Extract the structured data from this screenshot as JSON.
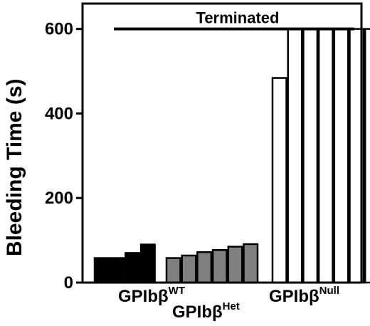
{
  "chart_data": {
    "type": "bar",
    "title": "",
    "xlabel": "",
    "ylabel": "Bleeding Time (s)",
    "ylim": [
      0,
      660
    ],
    "yticks": [
      0,
      200,
      400,
      600
    ],
    "grid": false,
    "legend": "none",
    "groups": [
      {
        "name": "GPIbβ",
        "sup": "WT",
        "values": [
          58,
          58,
          70,
          90
        ],
        "fill": "#000000"
      },
      {
        "name": "GPIbβ",
        "sup": "Het",
        "values": [
          58,
          64,
          72,
          77,
          85,
          91
        ],
        "fill": "#808080"
      },
      {
        "name": "GPIbβ",
        "sup": "Null",
        "values": [
          484,
          600,
          600,
          600,
          600,
          600,
          600
        ],
        "fill": "#ffffff"
      }
    ],
    "annotation": {
      "text": "Terminated",
      "value": 600
    }
  }
}
